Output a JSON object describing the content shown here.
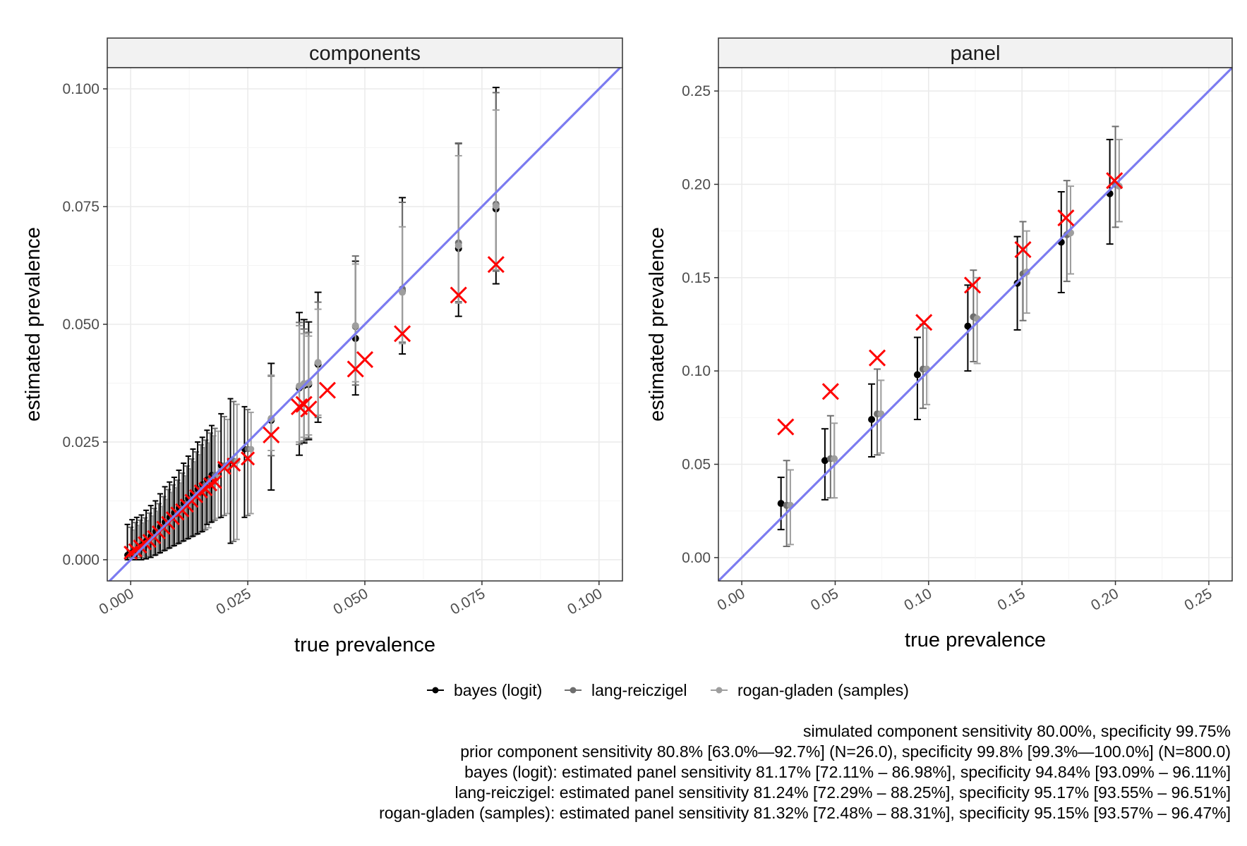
{
  "chart_data": [
    {
      "type": "scatter",
      "facet": "components",
      "xlabel": "true prevalence",
      "ylabel": "estimated prevalence",
      "xlim": [
        -0.005,
        0.105
      ],
      "ylim": [
        -0.0045,
        0.1045
      ],
      "xticks": [
        "0.000",
        "0.025",
        "0.050",
        "0.075",
        "0.100"
      ],
      "yticks": [
        "0.000",
        "0.025",
        "0.050",
        "0.075",
        "0.100"
      ],
      "grid": true,
      "reference_line": {
        "intercept": 0,
        "slope": 1,
        "color": "#7b7bf0"
      },
      "true_positions": [
        0.0,
        0.001,
        0.002,
        0.003,
        0.004,
        0.005,
        0.006,
        0.007,
        0.008,
        0.009,
        0.01,
        0.011,
        0.012,
        0.013,
        0.014,
        0.015,
        0.016,
        0.017,
        0.018,
        0.02,
        0.022,
        0.025,
        0.03,
        0.036,
        0.037,
        0.038,
        0.04,
        0.042,
        0.048,
        0.05,
        0.058,
        0.07,
        0.078
      ],
      "series": [
        {
          "name": "bayes (logit)",
          "color": "#000000",
          "points": [
            {
              "x": 0.03,
              "y": 0.0296,
              "lo": 0.0148,
              "hi": 0.0417
            },
            {
              "x": 0.036,
              "y": 0.0365,
              "lo": 0.0222,
              "hi": 0.0525
            },
            {
              "x": 0.037,
              "y": 0.037,
              "lo": 0.0248,
              "hi": 0.051
            },
            {
              "x": 0.038,
              "y": 0.0372,
              "lo": 0.0255,
              "hi": 0.0505
            },
            {
              "x": 0.04,
              "y": 0.0415,
              "lo": 0.0292,
              "hi": 0.0568
            },
            {
              "x": 0.048,
              "y": 0.047,
              "lo": 0.035,
              "hi": 0.0634
            },
            {
              "x": 0.058,
              "y": 0.057,
              "lo": 0.0437,
              "hi": 0.0769
            },
            {
              "x": 0.07,
              "y": 0.0661,
              "lo": 0.0517,
              "hi": 0.0884
            },
            {
              "x": 0.078,
              "y": 0.0745,
              "lo": 0.0586,
              "hi": 0.1003
            }
          ]
        },
        {
          "name": "lang-reiczigel",
          "color": "#6e6e6e",
          "points": [
            {
              "x": 0.03,
              "y": 0.0299,
              "lo": 0.0221,
              "hi": 0.039
            },
            {
              "x": 0.036,
              "y": 0.0368,
              "lo": 0.0245,
              "hi": 0.0504
            },
            {
              "x": 0.037,
              "y": 0.0373,
              "lo": 0.0252,
              "hi": 0.049
            },
            {
              "x": 0.038,
              "y": 0.0375,
              "lo": 0.0258,
              "hi": 0.0483
            },
            {
              "x": 0.04,
              "y": 0.0418,
              "lo": 0.0302,
              "hi": 0.0547
            },
            {
              "x": 0.048,
              "y": 0.0495,
              "lo": 0.0371,
              "hi": 0.0645
            },
            {
              "x": 0.058,
              "y": 0.0575,
              "lo": 0.0462,
              "hi": 0.0759
            },
            {
              "x": 0.07,
              "y": 0.0673,
              "lo": 0.0548,
              "hi": 0.0885
            },
            {
              "x": 0.078,
              "y": 0.0755,
              "lo": 0.0613,
              "hi": 0.0992
            }
          ]
        },
        {
          "name": "rogan-gladen (samples)",
          "color": "#9e9e9e",
          "points": [
            {
              "x": 0.03,
              "y": 0.03,
              "lo": 0.0232,
              "hi": 0.0392
            },
            {
              "x": 0.036,
              "y": 0.0369,
              "lo": 0.025,
              "hi": 0.0497
            },
            {
              "x": 0.037,
              "y": 0.0374,
              "lo": 0.026,
              "hi": 0.048
            },
            {
              "x": 0.038,
              "y": 0.0376,
              "lo": 0.0265,
              "hi": 0.0475
            },
            {
              "x": 0.04,
              "y": 0.0419,
              "lo": 0.0307,
              "hi": 0.0532
            },
            {
              "x": 0.048,
              "y": 0.0497,
              "lo": 0.0378,
              "hi": 0.0628
            },
            {
              "x": 0.058,
              "y": 0.0568,
              "lo": 0.0459,
              "hi": 0.0707
            },
            {
              "x": 0.07,
              "y": 0.0667,
              "lo": 0.0545,
              "hi": 0.0858
            },
            {
              "x": 0.078,
              "y": 0.0751,
              "lo": 0.0616,
              "hi": 0.0955
            }
          ]
        },
        {
          "name": "observed (x markers)",
          "color": "#ff0000",
          "points": [
            {
              "x": 0.03,
              "y": 0.0265
            },
            {
              "x": 0.036,
              "y": 0.0325
            },
            {
              "x": 0.037,
              "y": 0.033
            },
            {
              "x": 0.038,
              "y": 0.032
            },
            {
              "x": 0.042,
              "y": 0.036
            },
            {
              "x": 0.048,
              "y": 0.0405
            },
            {
              "x": 0.05,
              "y": 0.0425
            },
            {
              "x": 0.058,
              "y": 0.048
            },
            {
              "x": 0.07,
              "y": 0.0562
            },
            {
              "x": 0.078,
              "y": 0.0627
            }
          ]
        }
      ],
      "dense_cluster": {
        "description_hidden": true,
        "x_range": [
          0.0,
          0.025
        ],
        "points": [
          {
            "x": 0.0,
            "y": 0.001,
            "lo": 0.0,
            "hi": 0.0075,
            "obs": 0.0015
          },
          {
            "x": 0.001,
            "y": 0.0015,
            "lo": 0.0,
            "hi": 0.0085,
            "obs": 0.002
          },
          {
            "x": 0.002,
            "y": 0.002,
            "lo": 0.0,
            "hi": 0.009,
            "obs": 0.0028
          },
          {
            "x": 0.003,
            "y": 0.003,
            "lo": 0.0,
            "hi": 0.0095,
            "obs": 0.0035
          },
          {
            "x": 0.004,
            "y": 0.004,
            "lo": 0.0002,
            "hi": 0.0105,
            "obs": 0.004
          },
          {
            "x": 0.005,
            "y": 0.005,
            "lo": 0.0005,
            "hi": 0.0115,
            "obs": 0.0048
          },
          {
            "x": 0.006,
            "y": 0.006,
            "lo": 0.001,
            "hi": 0.0125,
            "obs": 0.0058
          },
          {
            "x": 0.007,
            "y": 0.007,
            "lo": 0.0015,
            "hi": 0.014,
            "obs": 0.0068
          },
          {
            "x": 0.008,
            "y": 0.008,
            "lo": 0.002,
            "hi": 0.0155,
            "obs": 0.0078
          },
          {
            "x": 0.009,
            "y": 0.009,
            "lo": 0.0025,
            "hi": 0.0165,
            "obs": 0.0088
          },
          {
            "x": 0.01,
            "y": 0.01,
            "lo": 0.003,
            "hi": 0.0175,
            "obs": 0.0098
          },
          {
            "x": 0.011,
            "y": 0.011,
            "lo": 0.0035,
            "hi": 0.019,
            "obs": 0.0105
          },
          {
            "x": 0.012,
            "y": 0.012,
            "lo": 0.004,
            "hi": 0.0205,
            "obs": 0.0115
          },
          {
            "x": 0.013,
            "y": 0.013,
            "lo": 0.0045,
            "hi": 0.022,
            "obs": 0.0125
          },
          {
            "x": 0.014,
            "y": 0.014,
            "lo": 0.005,
            "hi": 0.0235,
            "obs": 0.0135
          },
          {
            "x": 0.015,
            "y": 0.015,
            "lo": 0.0055,
            "hi": 0.025,
            "obs": 0.0145
          },
          {
            "x": 0.016,
            "y": 0.016,
            "lo": 0.006,
            "hi": 0.026,
            "obs": 0.015
          },
          {
            "x": 0.017,
            "y": 0.017,
            "lo": 0.0075,
            "hi": 0.0275,
            "obs": 0.016
          },
          {
            "x": 0.018,
            "y": 0.018,
            "lo": 0.008,
            "hi": 0.0285,
            "obs": 0.0165
          },
          {
            "x": 0.02,
            "y": 0.02,
            "lo": 0.009,
            "hi": 0.031,
            "obs": 0.0195
          },
          {
            "x": 0.022,
            "y": 0.021,
            "lo": 0.0035,
            "hi": 0.0342,
            "obs": 0.0202
          },
          {
            "x": 0.025,
            "y": 0.0235,
            "lo": 0.009,
            "hi": 0.0325,
            "obs": 0.0215
          }
        ]
      }
    },
    {
      "type": "scatter",
      "facet": "panel",
      "xlabel": "true prevalence",
      "ylabel": "estimated prevalence",
      "xlim": [
        -0.0125,
        0.2625
      ],
      "ylim": [
        -0.0125,
        0.2625
      ],
      "xticks": [
        "0.00",
        "0.05",
        "0.10",
        "0.15",
        "0.20",
        "0.25"
      ],
      "yticks": [
        "0.00",
        "0.05",
        "0.10",
        "0.15",
        "0.20",
        "0.25"
      ],
      "grid": true,
      "reference_line": {
        "intercept": 0,
        "slope": 1,
        "color": "#7b7bf0"
      },
      "series": [
        {
          "name": "bayes (logit)",
          "color": "#000000",
          "points": [
            {
              "x": 0.021,
              "y": 0.029,
              "lo": 0.015,
              "hi": 0.043
            },
            {
              "x": 0.0445,
              "y": 0.052,
              "lo": 0.031,
              "hi": 0.069
            },
            {
              "x": 0.0695,
              "y": 0.074,
              "lo": 0.054,
              "hi": 0.093
            },
            {
              "x": 0.094,
              "y": 0.098,
              "lo": 0.074,
              "hi": 0.118
            },
            {
              "x": 0.121,
              "y": 0.124,
              "lo": 0.1,
              "hi": 0.146
            },
            {
              "x": 0.1475,
              "y": 0.147,
              "lo": 0.122,
              "hi": 0.172
            },
            {
              "x": 0.171,
              "y": 0.169,
              "lo": 0.142,
              "hi": 0.196
            },
            {
              "x": 0.197,
              "y": 0.195,
              "lo": 0.168,
              "hi": 0.224
            }
          ]
        },
        {
          "name": "lang-reiczigel",
          "color": "#6e6e6e",
          "points": [
            {
              "x": 0.024,
              "y": 0.028,
              "lo": 0.006,
              "hi": 0.052
            },
            {
              "x": 0.0475,
              "y": 0.053,
              "lo": 0.032,
              "hi": 0.076
            },
            {
              "x": 0.0725,
              "y": 0.077,
              "lo": 0.055,
              "hi": 0.101
            },
            {
              "x": 0.097,
              "y": 0.101,
              "lo": 0.08,
              "hi": 0.125
            },
            {
              "x": 0.124,
              "y": 0.129,
              "lo": 0.105,
              "hi": 0.154
            },
            {
              "x": 0.1505,
              "y": 0.152,
              "lo": 0.127,
              "hi": 0.18
            },
            {
              "x": 0.174,
              "y": 0.173,
              "lo": 0.148,
              "hi": 0.202
            },
            {
              "x": 0.2,
              "y": 0.2,
              "lo": 0.177,
              "hi": 0.231
            }
          ]
        },
        {
          "name": "rogan-gladen (samples)",
          "color": "#9e9e9e",
          "points": [
            {
              "x": 0.026,
              "y": 0.028,
              "lo": 0.007,
              "hi": 0.047
            },
            {
              "x": 0.0495,
              "y": 0.053,
              "lo": 0.032,
              "hi": 0.072
            },
            {
              "x": 0.0745,
              "y": 0.077,
              "lo": 0.056,
              "hi": 0.095
            },
            {
              "x": 0.099,
              "y": 0.101,
              "lo": 0.082,
              "hi": 0.123
            },
            {
              "x": 0.126,
              "y": 0.128,
              "lo": 0.104,
              "hi": 0.15
            },
            {
              "x": 0.1525,
              "y": 0.153,
              "lo": 0.131,
              "hi": 0.175
            },
            {
              "x": 0.176,
              "y": 0.174,
              "lo": 0.152,
              "hi": 0.199
            },
            {
              "x": 0.202,
              "y": 0.199,
              "lo": 0.18,
              "hi": 0.224
            }
          ]
        },
        {
          "name": "observed (x markers)",
          "color": "#ff0000",
          "points": [
            {
              "x": 0.0235,
              "y": 0.07
            },
            {
              "x": 0.0475,
              "y": 0.089
            },
            {
              "x": 0.0725,
              "y": 0.107
            },
            {
              "x": 0.0975,
              "y": 0.126
            },
            {
              "x": 0.1235,
              "y": 0.146
            },
            {
              "x": 0.1505,
              "y": 0.165
            },
            {
              "x": 0.1735,
              "y": 0.182
            },
            {
              "x": 0.1995,
              "y": 0.202
            }
          ]
        }
      ]
    }
  ],
  "strips": {
    "left": "components",
    "right": "panel"
  },
  "axes": {
    "left_xlabel": "true prevalence",
    "left_ylabel": "estimated prevalence",
    "right_xlabel": "true prevalence",
    "right_ylabel": "estimated prevalence"
  },
  "legend": {
    "items": [
      {
        "label": "bayes (logit)",
        "color": "#000000"
      },
      {
        "label": "lang-reiczigel",
        "color": "#6e6e6e"
      },
      {
        "label": "rogan-gladen (samples)",
        "color": "#9e9e9e"
      }
    ]
  },
  "caption": {
    "line1": "simulated component sensitivity 80.00%, specificity 99.75%",
    "line2": "prior component sensitivity 80.8% [63.0%—92.7%] (N=26.0), specificity 99.8% [99.3%—100.0%] (N=800.0)",
    "line3": "bayes (logit): estimated panel sensitivity 81.17% [72.11% – 86.98%], specificity 94.84% [93.09% – 96.11%]",
    "line4": "lang-reiczigel: estimated panel sensitivity 81.24% [72.29% – 88.25%], specificity 95.17% [93.55% – 96.51%]",
    "line5": "rogan-gladen (samples): estimated panel sensitivity 81.32% [72.48% – 88.31%], specificity 95.15% [93.57% – 96.47%]"
  },
  "colors": {
    "reference_line": "#7b7bf0",
    "observed": "#ff0000",
    "grid_major": "#ebebeb",
    "grid_minor": "#f4f4f4",
    "strip_bg": "#f2f2f2",
    "panel_border": "#333333"
  }
}
